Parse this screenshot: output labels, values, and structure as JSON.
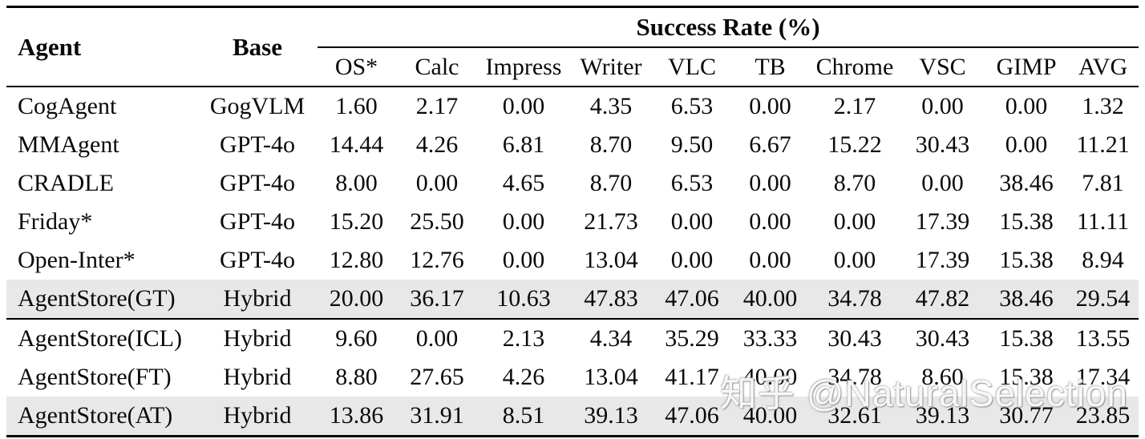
{
  "table": {
    "header": {
      "agent": "Agent",
      "base": "Base",
      "group": "Success Rate (%)",
      "columns": [
        "OS*",
        "Calc",
        "Impress",
        "Writer",
        "VLC",
        "TB",
        "Chrome",
        "VSC",
        "GIMP",
        "AVG"
      ]
    },
    "rows": [
      {
        "agent": "CogAgent",
        "base": "GogVLM",
        "highlight": false,
        "values": [
          "1.60",
          "2.17",
          "0.00",
          "4.35",
          "6.53",
          "0.00",
          "2.17",
          "0.00",
          "0.00",
          "1.32"
        ]
      },
      {
        "agent": "MMAgent",
        "base": "GPT-4o",
        "highlight": false,
        "values": [
          "14.44",
          "4.26",
          "6.81",
          "8.70",
          "9.50",
          "6.67",
          "15.22",
          "30.43",
          "0.00",
          "11.21"
        ]
      },
      {
        "agent": "CRADLE",
        "base": "GPT-4o",
        "highlight": false,
        "values": [
          "8.00",
          "0.00",
          "4.65",
          "8.70",
          "6.53",
          "0.00",
          "8.70",
          "0.00",
          "38.46",
          "7.81"
        ]
      },
      {
        "agent": "Friday*",
        "base": "GPT-4o",
        "highlight": false,
        "values": [
          "15.20",
          "25.50",
          "0.00",
          "21.73",
          "0.00",
          "0.00",
          "0.00",
          "17.39",
          "15.38",
          "11.11"
        ]
      },
      {
        "agent": "Open-Inter*",
        "base": "GPT-4o",
        "highlight": false,
        "values": [
          "12.80",
          "12.76",
          "0.00",
          "13.04",
          "0.00",
          "0.00",
          "0.00",
          "17.39",
          "15.38",
          "8.94"
        ]
      },
      {
        "agent": "AgentStore(GT)",
        "base": "Hybrid",
        "highlight": true,
        "values": [
          "20.00",
          "36.17",
          "10.63",
          "47.83",
          "47.06",
          "40.00",
          "34.78",
          "47.82",
          "38.46",
          "29.54"
        ]
      },
      {
        "agent": "AgentStore(ICL)",
        "base": "Hybrid",
        "highlight": false,
        "values": [
          "9.60",
          "0.00",
          "2.13",
          "4.34",
          "35.29",
          "33.33",
          "30.43",
          "30.43",
          "15.38",
          "13.55"
        ]
      },
      {
        "agent": "AgentStore(FT)",
        "base": "Hybrid",
        "highlight": false,
        "values": [
          "8.80",
          "27.65",
          "4.26",
          "13.04",
          "41.17",
          "40.00",
          "34.78",
          "8.60",
          "15.38",
          "17.34"
        ]
      },
      {
        "agent": "AgentStore(AT)",
        "base": "Hybrid",
        "highlight": true,
        "values": [
          "13.86",
          "31.91",
          "8.51",
          "39.13",
          "47.06",
          "40.00",
          "32.61",
          "39.13",
          "30.77",
          "23.85"
        ]
      }
    ]
  },
  "watermark": "知乎 @NaturalSelection",
  "colors": {
    "highlight_row": "#e8e8e8",
    "rule": "#000000",
    "watermark_text": "#ffffff"
  }
}
